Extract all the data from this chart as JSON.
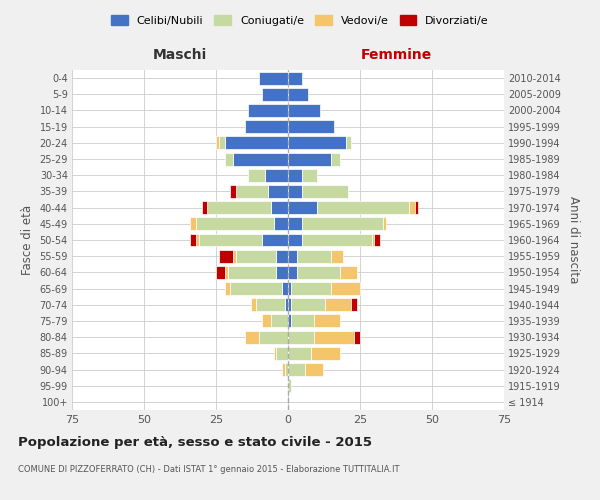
{
  "age_groups": [
    "100+",
    "95-99",
    "90-94",
    "85-89",
    "80-84",
    "75-79",
    "70-74",
    "65-69",
    "60-64",
    "55-59",
    "50-54",
    "45-49",
    "40-44",
    "35-39",
    "30-34",
    "25-29",
    "20-24",
    "15-19",
    "10-14",
    "5-9",
    "0-4"
  ],
  "birth_years": [
    "≤ 1914",
    "1915-1919",
    "1920-1924",
    "1925-1929",
    "1930-1934",
    "1935-1939",
    "1940-1944",
    "1945-1949",
    "1950-1954",
    "1955-1959",
    "1960-1964",
    "1965-1969",
    "1970-1974",
    "1975-1979",
    "1980-1984",
    "1985-1989",
    "1990-1994",
    "1995-1999",
    "2000-2004",
    "2005-2009",
    "2010-2014"
  ],
  "colors": {
    "celibi": "#4472c4",
    "coniugati": "#c5d9a0",
    "vedovi": "#f5c56a",
    "divorziati": "#c00000"
  },
  "male": {
    "celibi": [
      0,
      0,
      0,
      0,
      0,
      0,
      1,
      2,
      4,
      4,
      9,
      5,
      6,
      7,
      8,
      19,
      22,
      15,
      14,
      9,
      10
    ],
    "coniugati": [
      0,
      0,
      1,
      4,
      10,
      6,
      10,
      18,
      17,
      14,
      22,
      27,
      22,
      11,
      6,
      3,
      2,
      0,
      0,
      0,
      0
    ],
    "vedovi": [
      0,
      0,
      1,
      1,
      5,
      3,
      2,
      2,
      1,
      1,
      1,
      2,
      0,
      0,
      0,
      0,
      1,
      0,
      0,
      0,
      0
    ],
    "divorziati": [
      0,
      0,
      0,
      0,
      0,
      0,
      0,
      0,
      3,
      5,
      2,
      0,
      2,
      2,
      0,
      0,
      0,
      0,
      0,
      0,
      0
    ]
  },
  "female": {
    "celibi": [
      0,
      0,
      0,
      0,
      0,
      1,
      1,
      1,
      3,
      3,
      5,
      5,
      10,
      5,
      5,
      15,
      20,
      16,
      11,
      7,
      5
    ],
    "coniugati": [
      0,
      1,
      6,
      8,
      9,
      8,
      12,
      14,
      15,
      12,
      24,
      28,
      32,
      16,
      5,
      3,
      2,
      0,
      0,
      0,
      0
    ],
    "vedovi": [
      0,
      0,
      6,
      10,
      14,
      9,
      9,
      10,
      6,
      4,
      1,
      1,
      2,
      0,
      0,
      0,
      0,
      0,
      0,
      0,
      0
    ],
    "divorziati": [
      0,
      0,
      0,
      0,
      2,
      0,
      2,
      0,
      0,
      0,
      2,
      0,
      1,
      0,
      0,
      0,
      0,
      0,
      0,
      0,
      0
    ]
  },
  "xlim": 75,
  "title": "Popolazione per età, sesso e stato civile - 2015",
  "subtitle": "COMUNE DI PIZZOFERRATO (CH) - Dati ISTAT 1° gennaio 2015 - Elaborazione TUTTITALIA.IT",
  "xlabel_left": "Maschi",
  "xlabel_right": "Femmine",
  "ylabel_left": "Fasce di età",
  "ylabel_right": "Anni di nascita",
  "legend_labels": [
    "Celibi/Nubili",
    "Coniugati/e",
    "Vedovi/e",
    "Divorziati/e"
  ],
  "bg_color": "#f0f0f0",
  "plot_bg": "#ffffff",
  "grid_color": "#cccccc"
}
